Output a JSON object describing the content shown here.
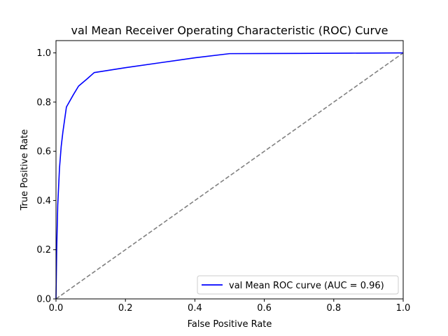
{
  "chart_data": {
    "type": "line",
    "title": "val Mean Receiver Operating Characteristic (ROC) Curve",
    "xlabel": "False Positive Rate",
    "ylabel": "True Positive Rate",
    "xlim": [
      0.0,
      1.0
    ],
    "ylim": [
      0.0,
      1.05
    ],
    "xticks": [
      "0.0",
      "0.2",
      "0.4",
      "0.6",
      "0.8",
      "1.0"
    ],
    "yticks": [
      "0.0",
      "0.2",
      "0.4",
      "0.6",
      "0.8",
      "1.0"
    ],
    "grid": false,
    "legend_position": "lower-right",
    "series": [
      {
        "name": "val Mean ROC curve (AUC = 0.96)",
        "color": "#0000ff",
        "style": "solid",
        "x": [
          0.0,
          0.002,
          0.005,
          0.01,
          0.015,
          0.02,
          0.03,
          0.05,
          0.065,
          0.09,
          0.11,
          0.2,
          0.3,
          0.4,
          0.5,
          0.7,
          0.85,
          1.0
        ],
        "y": [
          0.0,
          0.2,
          0.38,
          0.53,
          0.62,
          0.68,
          0.78,
          0.83,
          0.865,
          0.895,
          0.92,
          0.94,
          0.96,
          0.98,
          0.997,
          0.998,
          0.999,
          1.0
        ]
      },
      {
        "name": "",
        "color": "#808080",
        "style": "dashed",
        "x": [
          0.0,
          1.0
        ],
        "y": [
          0.0,
          1.0
        ]
      }
    ]
  }
}
